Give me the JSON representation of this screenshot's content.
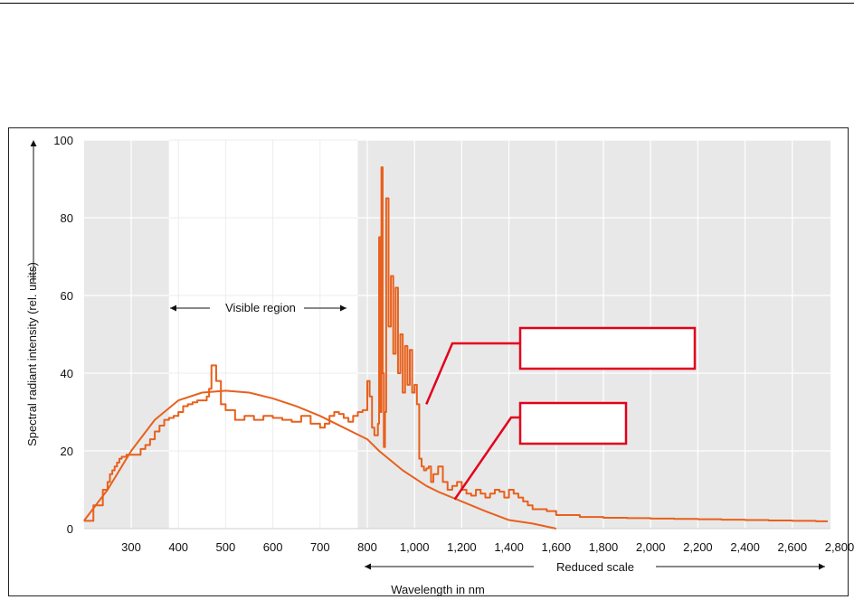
{
  "chart_data": {
    "type": "line",
    "ylabel": "Spectral radiant intensity (rel. units)",
    "xlabel": "Wavelength in nm",
    "reduced_scale_label": "Reduced scale",
    "visible_region_label": "Visible region",
    "ylim": [
      0,
      100
    ],
    "y_ticks": [
      0,
      20,
      40,
      60,
      80,
      100
    ],
    "x_ticks": [
      "300",
      "400",
      "500",
      "600",
      "700",
      "800",
      "1,000",
      "1,200",
      "1,400",
      "1,600",
      "1,800",
      "2,000",
      "2,200",
      "2,400",
      "2,600",
      "2,800"
    ],
    "visible_region_nm": [
      380,
      780
    ],
    "grid": true,
    "colors": {
      "series": "#e8601c",
      "callout": "#e3001b",
      "plot_bg": "#e8e8e8",
      "grid": "#ffffff"
    },
    "callouts": [
      {
        "text": "",
        "target_nm": 1050,
        "target_y": 32
      },
      {
        "text": "",
        "target_nm": 1170,
        "target_y": 7.5
      }
    ],
    "series": [
      {
        "kind": "smooth",
        "x": [
          200,
          250,
          300,
          350,
          400,
          450,
          500,
          550,
          600,
          650,
          700,
          750,
          800,
          850,
          900,
          950,
          1000,
          1050,
          1100,
          1200,
          1300,
          1400,
          1500,
          1600
        ],
        "values": [
          2,
          10,
          20,
          28,
          33,
          35,
          35.5,
          35,
          33.5,
          31.5,
          29,
          26,
          23,
          20,
          17.5,
          15,
          13,
          11,
          9.5,
          7,
          4.5,
          2.2,
          1.3,
          0
        ]
      },
      {
        "kind": "step",
        "x": [
          200,
          220,
          240,
          250,
          255,
          260,
          265,
          270,
          275,
          280,
          290,
          300,
          320,
          330,
          340,
          350,
          360,
          370,
          380,
          390,
          400,
          410,
          420,
          430,
          440,
          450,
          460,
          465,
          470,
          480,
          490,
          500,
          520,
          540,
          560,
          580,
          600,
          620,
          640,
          660,
          680,
          700,
          710,
          720,
          730,
          740,
          750,
          760,
          770,
          780,
          790,
          800,
          810,
          820,
          830,
          840,
          845,
          850,
          855,
          860,
          865,
          870,
          875,
          880,
          890,
          900,
          910,
          920,
          930,
          940,
          950,
          960,
          970,
          980,
          990,
          1000,
          1010,
          1020,
          1030,
          1040,
          1050,
          1060,
          1070,
          1080,
          1100,
          1120,
          1140,
          1160,
          1180,
          1200,
          1220,
          1240,
          1260,
          1280,
          1300,
          1320,
          1340,
          1360,
          1380,
          1400,
          1420,
          1440,
          1460,
          1480,
          1500,
          1520,
          1560,
          1600,
          1700,
          1800,
          1900,
          2000,
          2100,
          2200,
          2300,
          2400,
          2500,
          2600,
          2700,
          2750
        ],
        "values": [
          2,
          6,
          10,
          12,
          14,
          15,
          16,
          17,
          18,
          18.5,
          19,
          19,
          20.5,
          21.5,
          23,
          25,
          26.5,
          28,
          28.5,
          29,
          30,
          31.5,
          32,
          32.5,
          33,
          33,
          34,
          36,
          42,
          38,
          32,
          30.5,
          28,
          29,
          28,
          29,
          28.5,
          28,
          27.5,
          29,
          27,
          26,
          27,
          29,
          30,
          29.5,
          28.5,
          27.5,
          29,
          30,
          30.5,
          38,
          34,
          26,
          24,
          24,
          27,
          75,
          30,
          93,
          40,
          21,
          30,
          85,
          52,
          65,
          45,
          62,
          40,
          50,
          35,
          47,
          37,
          46,
          35,
          37,
          32,
          18,
          16,
          15,
          15.5,
          16,
          12,
          14,
          16,
          12,
          10,
          11,
          12,
          10,
          9,
          8.5,
          10,
          9,
          8,
          9,
          10,
          9.5,
          8,
          10,
          9,
          8,
          7,
          6,
          5,
          5,
          4.5,
          3.5,
          3,
          2.8,
          2.7,
          2.6,
          2.5,
          2.4,
          2.3,
          2.2,
          2.1,
          2.0,
          1.9,
          1.9
        ]
      }
    ]
  }
}
